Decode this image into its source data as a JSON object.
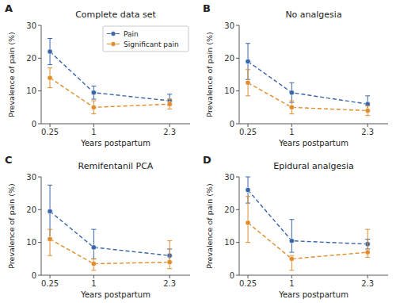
{
  "chart_data": [
    {
      "type": "scatter",
      "label": "A",
      "title": "Complete data set",
      "xlabel": "Years postpartum",
      "ylabel": "Prevalence of pain (%)",
      "xlim": [
        0.1,
        2.65
      ],
      "xticks": [
        0.25,
        1,
        2.3
      ],
      "ylim": [
        0,
        30
      ],
      "yticks": [
        0,
        10,
        20,
        30
      ],
      "grid": false,
      "legend": "top-right",
      "series": [
        {
          "name": "Pain",
          "color": "#3a66a7",
          "marker": "circle",
          "line_style": "dashed",
          "x": [
            0.25,
            1,
            2.3
          ],
          "values": [
            22,
            9.5,
            7
          ],
          "yerr_lo": [
            4,
            2,
            1.5
          ],
          "yerr_hi": [
            4,
            2,
            2
          ]
        },
        {
          "name": "Significant pain",
          "color": "#e08c2a",
          "marker": "circle",
          "line_style": "dashed",
          "x": [
            0.25,
            1,
            2.3
          ],
          "values": [
            14,
            5,
            6
          ],
          "yerr_lo": [
            3,
            2,
            1.5
          ],
          "yerr_hi": [
            3,
            2,
            1.5
          ]
        }
      ]
    },
    {
      "type": "scatter",
      "label": "B",
      "title": "No analgesia",
      "xlabel": "Years postpartum",
      "ylabel": "Prevalence of pain (%)",
      "xlim": [
        0.1,
        2.65
      ],
      "xticks": [
        0.25,
        1,
        2.3
      ],
      "ylim": [
        0,
        30
      ],
      "yticks": [
        0,
        10,
        20,
        30
      ],
      "grid": false,
      "series": [
        {
          "name": "Pain",
          "color": "#3a66a7",
          "marker": "circle",
          "line_style": "dashed",
          "x": [
            0.25,
            1,
            2.3
          ],
          "values": [
            19,
            9.5,
            6
          ],
          "yerr_lo": [
            5.5,
            3,
            2
          ],
          "yerr_hi": [
            5.5,
            3,
            2.5
          ]
        },
        {
          "name": "Significant pain",
          "color": "#e08c2a",
          "marker": "circle",
          "line_style": "dashed",
          "x": [
            0.25,
            1,
            2.3
          ],
          "values": [
            12.5,
            5,
            4
          ],
          "yerr_lo": [
            4,
            2,
            1.5
          ],
          "yerr_hi": [
            4,
            2,
            1.5
          ]
        }
      ]
    },
    {
      "type": "scatter",
      "label": "C",
      "title": "Remifentanil PCA",
      "xlabel": "Years postpartum",
      "ylabel": "Prevalence of pain (%)",
      "xlim": [
        0.1,
        2.65
      ],
      "xticks": [
        0.25,
        1,
        2.3
      ],
      "ylim": [
        0,
        30
      ],
      "yticks": [
        0,
        10,
        20,
        30
      ],
      "grid": false,
      "series": [
        {
          "name": "Pain",
          "color": "#3a66a7",
          "marker": "circle",
          "line_style": "dashed",
          "x": [
            0.25,
            1,
            2.3
          ],
          "values": [
            19.5,
            8.5,
            6
          ],
          "yerr_lo": [
            8,
            3.5,
            2
          ],
          "yerr_hi": [
            8,
            5.5,
            2
          ]
        },
        {
          "name": "Significant pain",
          "color": "#e08c2a",
          "marker": "circle",
          "line_style": "dashed",
          "x": [
            0.25,
            1,
            2.3
          ],
          "values": [
            11,
            3.5,
            4
          ],
          "yerr_lo": [
            5,
            2,
            2
          ],
          "yerr_hi": [
            3,
            1.5,
            6.5
          ]
        }
      ]
    },
    {
      "type": "scatter",
      "label": "D",
      "title": "Epidural analgesia",
      "xlabel": "Years postpartum",
      "ylabel": "Prevalence of pain (%)",
      "xlim": [
        0.1,
        2.65
      ],
      "xticks": [
        0.25,
        1,
        2.3
      ],
      "ylim": [
        0,
        30
      ],
      "yticks": [
        0,
        10,
        20,
        30
      ],
      "grid": false,
      "series": [
        {
          "name": "Pain",
          "color": "#3a66a7",
          "marker": "circle",
          "line_style": "dashed",
          "x": [
            0.25,
            1,
            2.3
          ],
          "values": [
            26,
            10.5,
            9.5
          ],
          "yerr_lo": [
            4,
            3.5,
            1.5
          ],
          "yerr_hi": [
            4,
            6.5,
            1.5
          ]
        },
        {
          "name": "Significant pain",
          "color": "#e08c2a",
          "marker": "circle",
          "line_style": "dashed",
          "x": [
            0.25,
            1,
            2.3
          ],
          "values": [
            16,
            5,
            7
          ],
          "yerr_lo": [
            6,
            3.5,
            1.5
          ],
          "yerr_hi": [
            8,
            1,
            7
          ]
        }
      ]
    }
  ]
}
